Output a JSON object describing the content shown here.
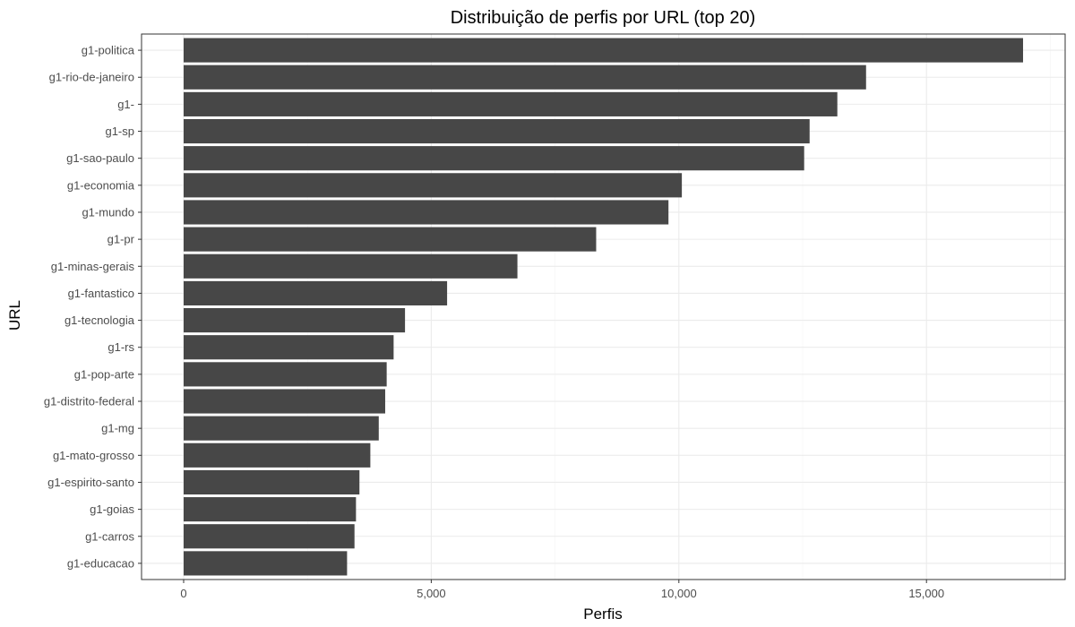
{
  "chart_data": {
    "type": "bar",
    "orientation": "horizontal",
    "title": "Distribuição de perfis por URL (top 20)",
    "xlabel": "Perfis",
    "ylabel": "URL",
    "categories": [
      "g1-politica",
      "g1-rio-de-janeiro",
      "g1-",
      "g1-sp",
      "g1-sao-paulo",
      "g1-economia",
      "g1-mundo",
      "g1-pr",
      "g1-minas-gerais",
      "g1-fantastico",
      "g1-tecnologia",
      "g1-rs",
      "g1-pop-arte",
      "g1-distrito-federal",
      "g1-mg",
      "g1-mato-grosso",
      "g1-espirito-santo",
      "g1-goias",
      "g1-carros",
      "g1-educacao"
    ],
    "values": [
      16950,
      13780,
      13200,
      12640,
      12530,
      10060,
      9790,
      8330,
      6740,
      5320,
      4470,
      4240,
      4100,
      4070,
      3940,
      3770,
      3550,
      3480,
      3450,
      3300
    ],
    "xlim": [
      -850,
      17800
    ],
    "xticks": [
      0,
      5000,
      10000,
      15000
    ],
    "xtick_labels": [
      "0",
      "5,000",
      "10,000",
      "15,000"
    ],
    "grid": true,
    "bar_color": "#474747"
  }
}
